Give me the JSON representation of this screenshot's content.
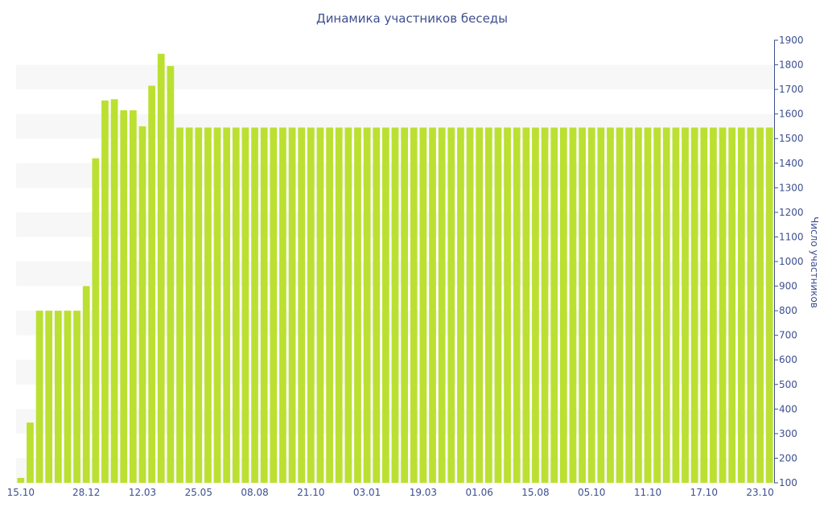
{
  "chart_data": {
    "type": "bar",
    "title": "Динамика участников беседы",
    "ylabel": "Число участников",
    "xlabel": "",
    "ylim": [
      100,
      1900
    ],
    "yticks": [
      100,
      200,
      300,
      400,
      500,
      600,
      700,
      800,
      900,
      1000,
      1100,
      1200,
      1300,
      1400,
      1500,
      1600,
      1700,
      1800,
      1900
    ],
    "grid": "horizontal bands",
    "axis_position": "right",
    "colors": {
      "bar": "#bbe031",
      "band": "#f7f7f7",
      "text": "#3d4f8f"
    },
    "x_tick_labels": [
      "15.10",
      "28.12",
      "12.03",
      "25.05",
      "08.08",
      "21.10",
      "03.01",
      "19.03",
      "01.06",
      "15.08",
      "05.10",
      "11.10",
      "17.10",
      "23.10"
    ],
    "x_tick_positions": [
      0,
      7,
      13,
      19,
      25,
      31,
      37,
      43,
      49,
      55,
      61,
      67,
      73,
      79
    ],
    "values": [
      120,
      345,
      800,
      800,
      800,
      800,
      800,
      900,
      1420,
      1655,
      1660,
      1615,
      1615,
      1550,
      1715,
      1845,
      1795,
      1545,
      1545,
      1545,
      1545,
      1545,
      1545,
      1545,
      1545,
      1545,
      1545,
      1545,
      1545,
      1545,
      1545,
      1545,
      1545,
      1545,
      1545,
      1545,
      1545,
      1545,
      1545,
      1545,
      1545,
      1545,
      1545,
      1545,
      1545,
      1545,
      1545,
      1545,
      1545,
      1545,
      1545,
      1545,
      1545,
      1545,
      1545,
      1545,
      1545,
      1545,
      1545,
      1545,
      1545,
      1545,
      1545,
      1545,
      1545,
      1545,
      1545,
      1545,
      1545,
      1545,
      1545,
      1545,
      1545,
      1545,
      1545,
      1545,
      1545,
      1545,
      1545,
      1545,
      1545
    ]
  }
}
